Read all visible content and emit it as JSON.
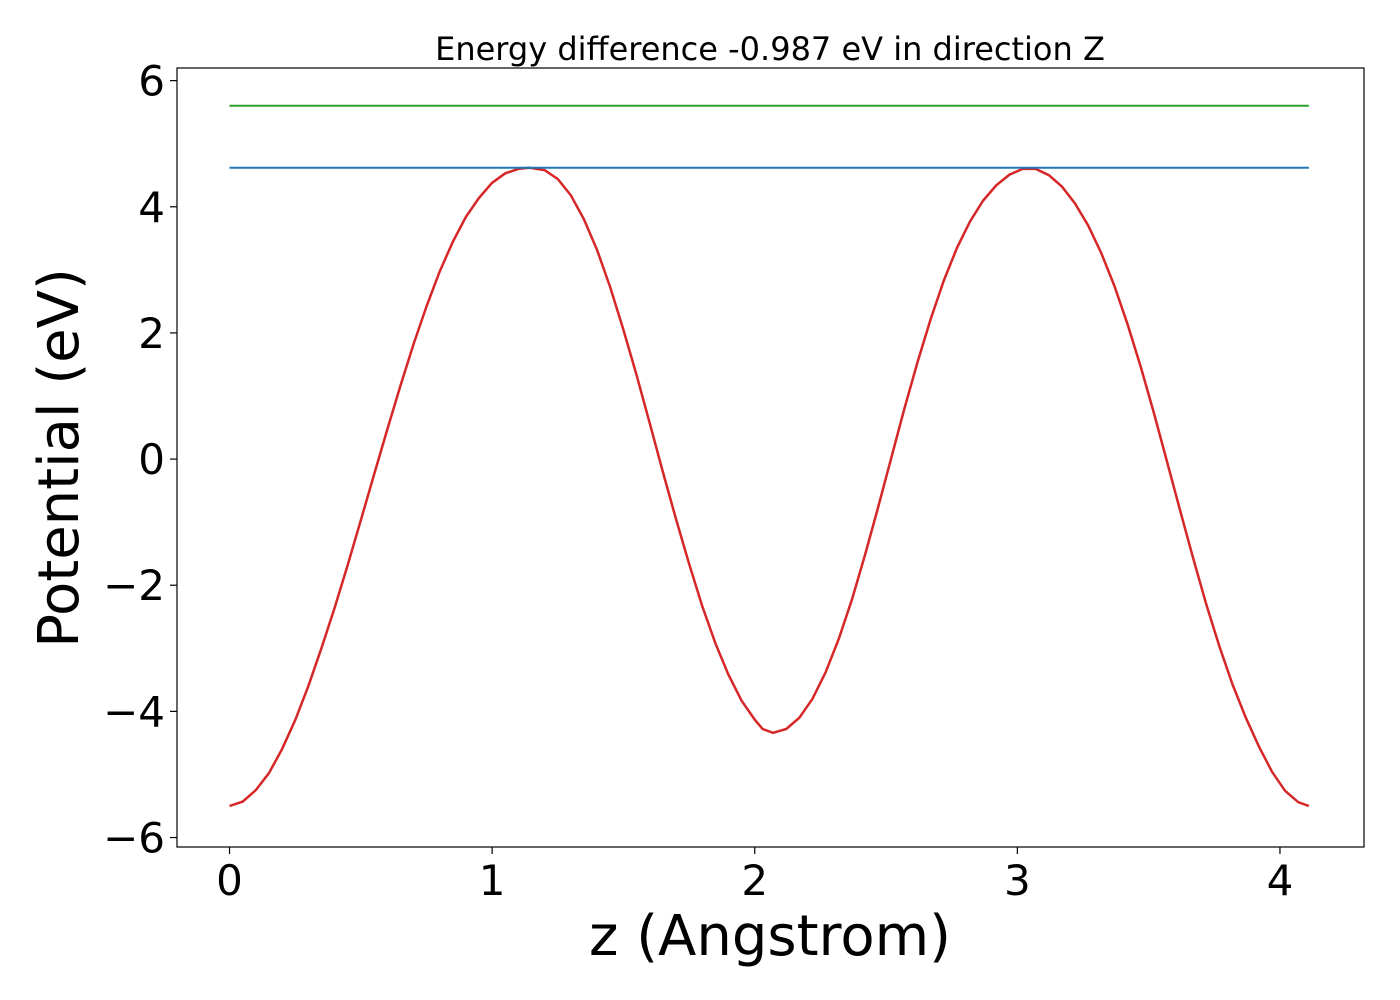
{
  "chart_data": {
    "type": "line",
    "title": "Energy difference -0.987 eV in direction Z",
    "xlabel": "z (Angstrom)",
    "ylabel": "Potential (eV)",
    "xlim": [
      -0.2,
      4.32
    ],
    "ylim": [
      -6.15,
      6.2
    ],
    "grid": false,
    "x_ticks": [
      0,
      1,
      2,
      3,
      4
    ],
    "x_tick_labels": [
      "0",
      "1",
      "2",
      "3",
      "4"
    ],
    "y_ticks": [
      -6,
      -4,
      -2,
      0,
      2,
      4,
      6
    ],
    "y_tick_labels": [
      "−6",
      "−4",
      "−2",
      "0",
      "2",
      "4",
      "6"
    ],
    "series": [
      {
        "color": "#d62728",
        "x": [
          0.0,
          0.05,
          0.1,
          0.15,
          0.2,
          0.25,
          0.3,
          0.35,
          0.4,
          0.45,
          0.5,
          0.55,
          0.6,
          0.65,
          0.7,
          0.75,
          0.8,
          0.85,
          0.9,
          0.95,
          1.0,
          1.05,
          1.1,
          1.14,
          1.2,
          1.25,
          1.3,
          1.35,
          1.4,
          1.45,
          1.5,
          1.55,
          1.6,
          1.65,
          1.7,
          1.75,
          1.8,
          1.85,
          1.9,
          1.95,
          2.0,
          2.03,
          2.07,
          2.12,
          2.17,
          2.22,
          2.27,
          2.32,
          2.37,
          2.42,
          2.47,
          2.52,
          2.57,
          2.62,
          2.67,
          2.72,
          2.77,
          2.82,
          2.87,
          2.92,
          2.97,
          3.02,
          3.07,
          3.12,
          3.17,
          3.22,
          3.27,
          3.32,
          3.37,
          3.42,
          3.47,
          3.52,
          3.57,
          3.62,
          3.67,
          3.72,
          3.77,
          3.82,
          3.87,
          3.92,
          3.97,
          4.02,
          4.07,
          4.11
        ],
        "y": [
          -5.5,
          -5.43,
          -5.25,
          -4.98,
          -4.6,
          -4.14,
          -3.6,
          -3.0,
          -2.36,
          -1.68,
          -0.97,
          -0.25,
          0.46,
          1.15,
          1.81,
          2.42,
          2.97,
          3.44,
          3.84,
          4.14,
          4.38,
          4.53,
          4.6,
          4.62,
          4.58,
          4.44,
          4.18,
          3.8,
          3.31,
          2.72,
          2.05,
          1.33,
          0.57,
          -0.2,
          -0.95,
          -1.66,
          -2.33,
          -2.92,
          -3.42,
          -3.83,
          -4.13,
          -4.28,
          -4.34,
          -4.28,
          -4.1,
          -3.8,
          -3.38,
          -2.85,
          -2.23,
          -1.52,
          -0.76,
          0.02,
          0.8,
          1.54,
          2.22,
          2.83,
          3.35,
          3.77,
          4.1,
          4.34,
          4.51,
          4.6,
          4.6,
          4.5,
          4.32,
          4.05,
          3.7,
          3.26,
          2.74,
          2.13,
          1.46,
          0.73,
          -0.04,
          -0.82,
          -1.58,
          -2.31,
          -2.98,
          -3.58,
          -4.1,
          -4.56,
          -4.96,
          -5.26,
          -5.44,
          -5.5
        ]
      },
      {
        "color": "#1f77b4",
        "x": [
          0.0,
          4.11
        ],
        "y": [
          4.62,
          4.62
        ]
      },
      {
        "color": "#2ca02c",
        "x": [
          0.0,
          4.11
        ],
        "y": [
          5.6,
          5.6
        ]
      }
    ]
  }
}
